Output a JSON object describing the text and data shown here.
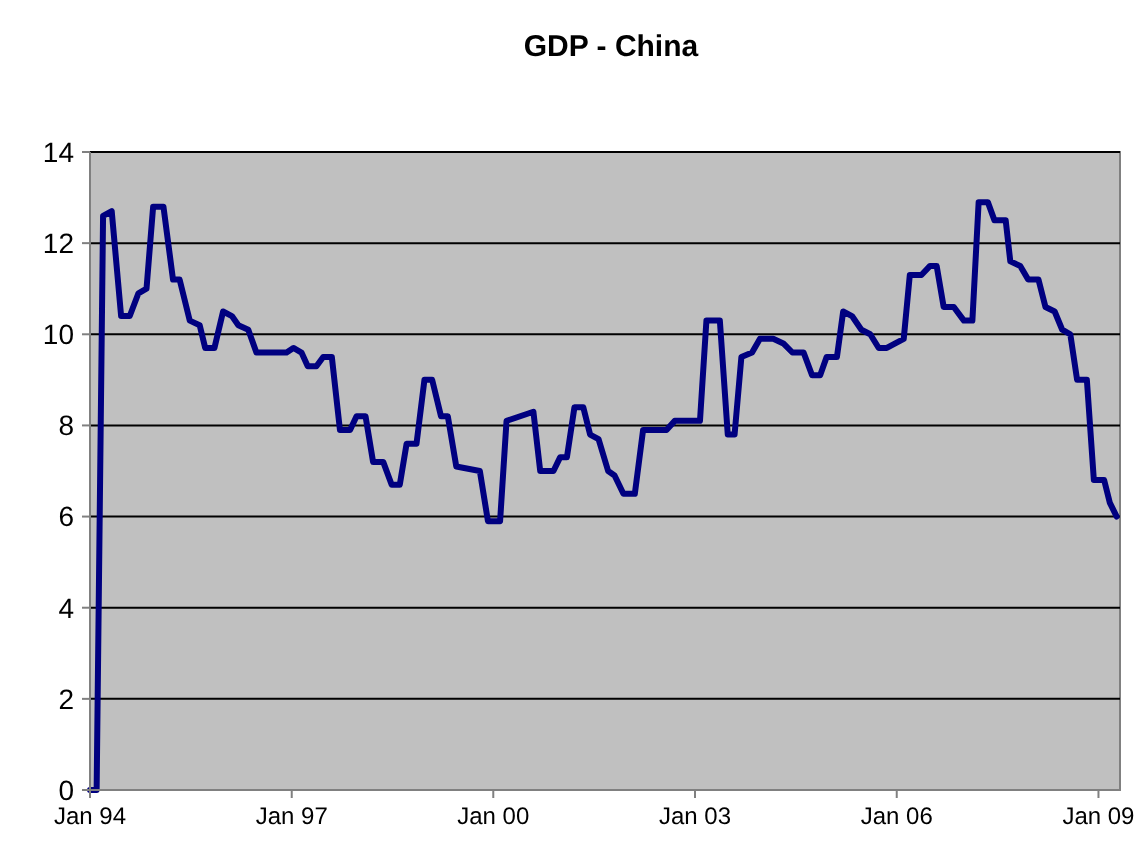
{
  "chart_data": {
    "type": "line",
    "title": "GDP - China",
    "grid": "y",
    "xlim": [
      "1994-01-01",
      "2009-04-28"
    ],
    "ylim": [
      0,
      14
    ],
    "yticks": [
      0,
      2,
      4,
      6,
      8,
      10,
      12,
      14
    ],
    "xticks": [
      {
        "value": "1994-01-01",
        "label": "Jan 94"
      },
      {
        "value": "1997-01-01",
        "label": "Jan 97"
      },
      {
        "value": "2000-01-01",
        "label": "Jan 00"
      },
      {
        "value": "2003-01-01",
        "label": "Jan 03"
      },
      {
        "value": "2006-01-01",
        "label": "Jan 06"
      },
      {
        "value": "2009-01-01",
        "label": "Jan 09"
      }
    ],
    "series": [
      {
        "color": "#000080",
        "line_style": "solid",
        "marker": "none",
        "x": [
          "1994-01-01",
          "1994-02-06",
          "1994-03-13",
          "1994-04-29",
          "1994-06-19",
          "1994-08-05",
          "1994-09-21",
          "1994-11-04",
          "1994-12-10",
          "1995-02-04",
          "1995-03-28",
          "1995-05-03",
          "1995-06-27",
          "1995-08-20",
          "1995-09-19",
          "1995-11-08",
          "1995-12-25",
          "1996-02-11",
          "1996-03-17",
          "1996-05-10",
          "1996-06-23",
          "1996-12-04",
          "1997-01-10",
          "1997-02-23",
          "1997-03-29",
          "1997-05-15",
          "1997-06-21",
          "1997-08-07",
          "1997-09-20",
          "1997-11-14",
          "1997-12-19",
          "1998-02-06",
          "1998-03-19",
          "1998-05-13",
          "1998-06-28",
          "1998-08-11",
          "1998-09-17",
          "1998-11-10",
          "1998-12-23",
          "1999-02-03",
          "1999-03-23",
          "1999-04-29",
          "1999-06-14",
          "1999-10-20",
          "1999-12-03",
          "2000-02-07",
          "2000-03-13",
          "2000-08-06",
          "2000-09-12",
          "2000-11-23",
          "2000-12-29",
          "2001-02-04",
          "2001-03-17",
          "2001-05-04",
          "2001-06-10",
          "2001-07-26",
          "2001-09-16",
          "2001-10-21",
          "2001-12-08",
          "2002-02-08",
          "2002-03-25",
          "2002-07-30",
          "2002-09-13",
          "2003-01-28",
          "2003-03-04",
          "2003-05-16",
          "2003-06-28",
          "2003-08-04",
          "2003-09-10",
          "2003-11-07",
          "2003-12-20",
          "2004-03-01",
          "2004-04-25",
          "2004-06-13",
          "2004-08-13",
          "2004-09-28",
          "2004-11-11",
          "2004-12-16",
          "2005-02-10",
          "2005-03-16",
          "2005-05-03",
          "2005-06-23",
          "2005-08-10",
          "2005-09-25",
          "2005-11-08",
          "2006-02-08",
          "2006-03-13",
          "2006-05-15",
          "2006-07-01",
          "2006-08-06",
          "2006-09-13",
          "2006-11-07",
          "2007-01-01",
          "2007-02-16",
          "2007-03-22",
          "2007-05-11",
          "2007-06-16",
          "2007-08-16",
          "2007-09-10",
          "2007-11-03",
          "2007-12-16",
          "2008-02-10",
          "2008-03-19",
          "2008-05-08",
          "2008-06-18",
          "2008-08-01",
          "2008-09-07",
          "2008-10-30",
          "2008-12-07",
          "2009-02-01",
          "2009-03-04",
          "2009-04-10"
        ],
        "values": [
          0,
          0,
          12.6,
          12.7,
          10.4,
          10.4,
          10.9,
          11.0,
          12.8,
          12.8,
          11.2,
          11.2,
          10.3,
          10.2,
          9.7,
          9.7,
          10.5,
          10.4,
          10.2,
          10.1,
          9.6,
          9.6,
          9.7,
          9.6,
          9.3,
          9.3,
          9.5,
          9.5,
          7.9,
          7.9,
          8.2,
          8.2,
          7.2,
          7.2,
          6.7,
          6.7,
          7.6,
          7.6,
          9.0,
          9.0,
          8.2,
          8.2,
          7.1,
          7.0,
          5.9,
          5.9,
          8.1,
          8.3,
          7.0,
          7.0,
          7.3,
          7.3,
          8.4,
          8.4,
          7.8,
          7.7,
          7.0,
          6.9,
          6.5,
          6.5,
          7.9,
          7.9,
          8.1,
          8.1,
          10.3,
          10.3,
          7.8,
          7.8,
          9.5,
          9.6,
          9.9,
          9.9,
          9.8,
          9.6,
          9.6,
          9.1,
          9.1,
          9.5,
          9.5,
          10.5,
          10.4,
          10.1,
          10.0,
          9.7,
          9.7,
          9.9,
          11.3,
          11.3,
          11.5,
          11.5,
          10.6,
          10.6,
          10.3,
          10.3,
          12.9,
          12.9,
          12.5,
          12.5,
          11.6,
          11.5,
          11.2,
          11.2,
          10.6,
          10.5,
          10.1,
          10.0,
          9.0,
          9.0,
          6.8,
          6.8,
          6.3,
          6.0
        ]
      }
    ]
  }
}
